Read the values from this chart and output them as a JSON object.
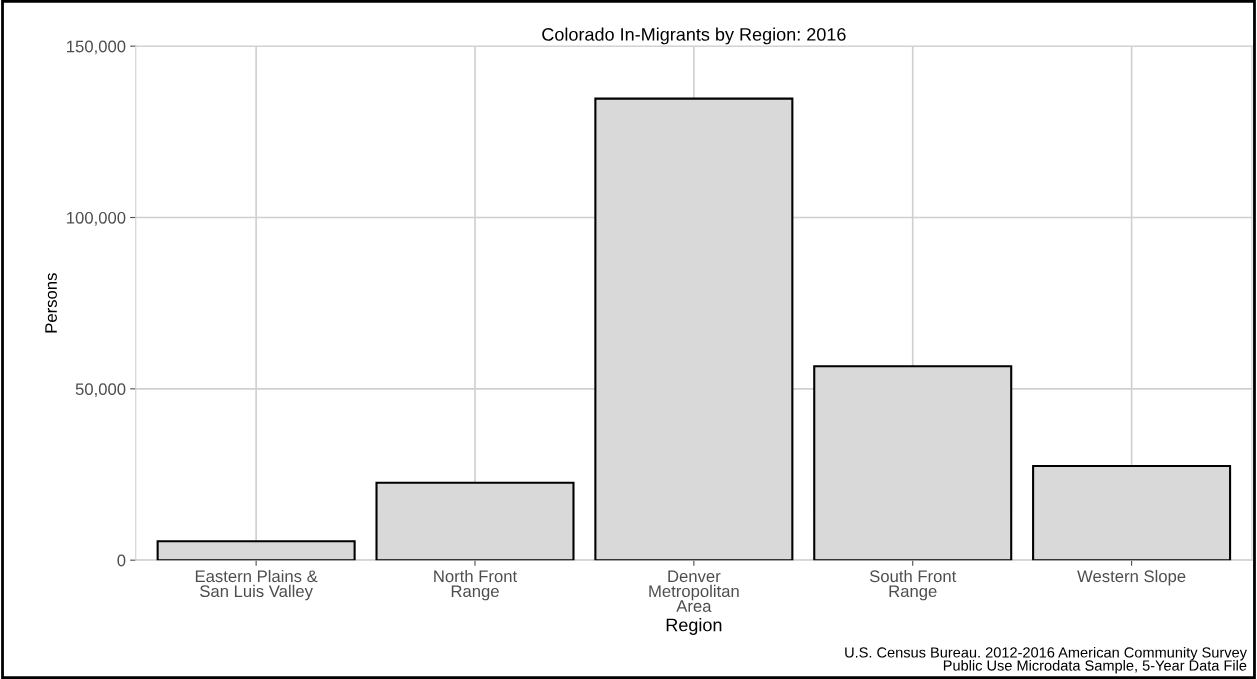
{
  "chart_data": {
    "type": "bar",
    "title": "Colorado In-Migrants by Region: 2016",
    "xlabel": "Region",
    "ylabel": "Persons",
    "categories": [
      "Eastern Plains &\nSan Luis Valley",
      "North Front\nRange",
      "Denver\nMetropolitan\nArea",
      "South Front\nRange",
      "Western Slope"
    ],
    "values": [
      5500,
      22600,
      134700,
      56600,
      27500
    ],
    "color": "#d9d9d9",
    "ylim": [
      0,
      150000
    ],
    "yticks": [
      {
        "value": 0,
        "label": "0"
      },
      {
        "value": 50000,
        "label": "50,000"
      },
      {
        "value": 100000,
        "label": "100,000"
      },
      {
        "value": 150000,
        "label": "150,000"
      }
    ],
    "grid": true,
    "annotations": [
      "U.S. Census Bureau. 2012-2016 American Community Survey\nPublic Use Microdata Sample, 5-Year Data File"
    ]
  }
}
